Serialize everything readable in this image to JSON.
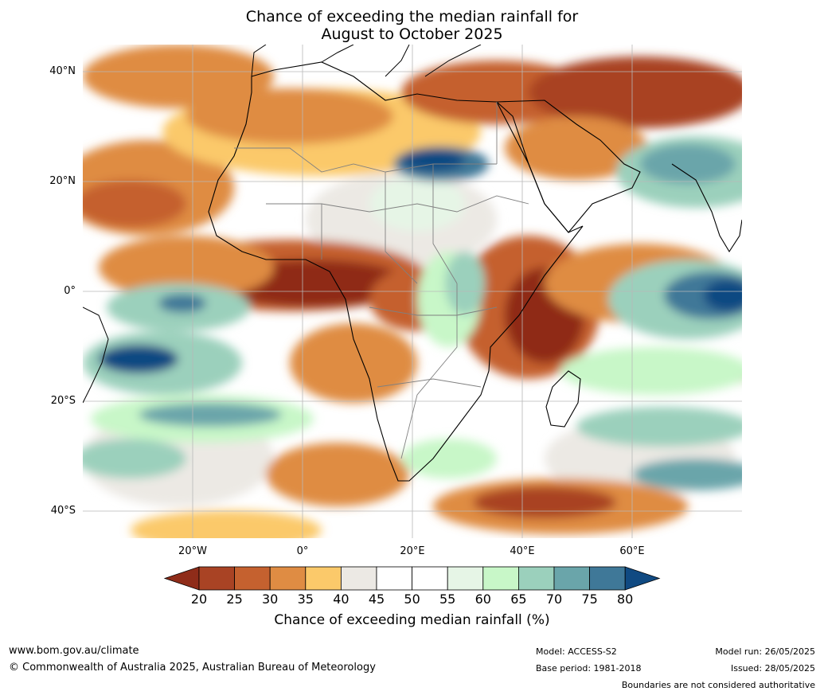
{
  "title": {
    "line1": "Chance of exceeding the median rainfall for",
    "line2": "August to October 2025"
  },
  "map": {
    "lat_labels": [
      "40°N",
      "20°N",
      "0°",
      "20°S",
      "40°S"
    ],
    "lon_labels": [
      "20°W",
      "0°",
      "20°E",
      "40°E",
      "60°E"
    ]
  },
  "colorbar": {
    "ticks": [
      "20",
      "25",
      "30",
      "35",
      "40",
      "45",
      "50",
      "55",
      "60",
      "65",
      "70",
      "75",
      "80"
    ],
    "colors": [
      "#8f2c19",
      "#a94324",
      "#c5612f",
      "#df8c43",
      "#fbc96a",
      "#ece9e4",
      "#ffffff",
      "#ffffff",
      "#e6f5e6",
      "#c8f7c8",
      "#9bd0bc",
      "#6aa5aa",
      "#3f7898",
      "#104a82"
    ],
    "title": "Chance of exceeding median rainfall (%)"
  },
  "footer": {
    "website": "www.bom.gov.au/climate",
    "copyright": "© Commonwealth of Australia 2025, Australian Bureau of Meteorology",
    "model": "Model: ACCESS-S2",
    "base_period": "Base period: 1981-2018",
    "model_run": "Model run: 26/05/2025",
    "issued": "Issued: 28/05/2025",
    "disclaimer": "Boundaries are not considered authoritative"
  }
}
